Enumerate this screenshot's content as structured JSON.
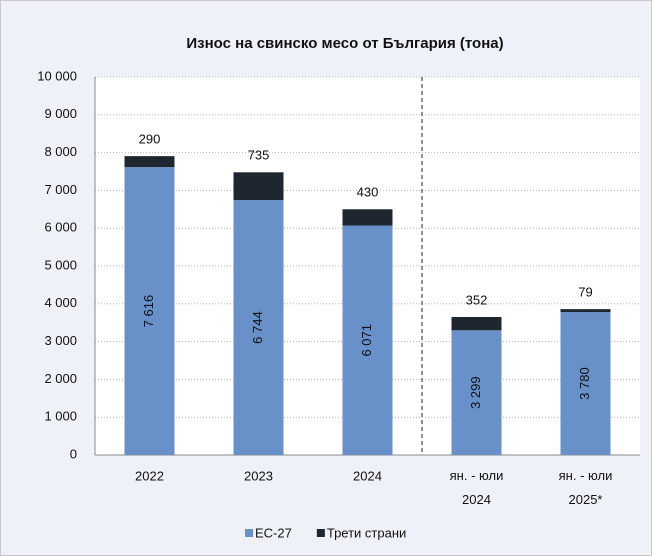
{
  "chart_data": {
    "type": "bar",
    "stacked": true,
    "title": "Износ на свинско месо от България (тона)",
    "categories": [
      "2022",
      "2023",
      "2024",
      "ян. - юли 2024",
      "ян. - юли 2025*"
    ],
    "series": [
      {
        "name": "ЕС-27",
        "color": "#6891c9",
        "values": [
          7616,
          6744,
          6071,
          3299,
          3780
        ],
        "value_labels": [
          "7 616",
          "6 744",
          "6 071",
          "3 299",
          "3 780"
        ]
      },
      {
        "name": "Трети страни",
        "color": "#1f2630",
        "values": [
          290,
          735,
          430,
          352,
          79
        ]
      }
    ],
    "ylim": [
      0,
      10000
    ],
    "yticks": [
      0,
      {
        "value": 1000,
        "label": "1 000"
      },
      {
        "value": 2000,
        "label": "2 000"
      },
      {
        "value": 3000,
        "label": "3 000"
      },
      {
        "value": 4000,
        "label": "4 000"
      },
      {
        "value": 5000,
        "label": "5 000"
      },
      {
        "value": 6000,
        "label": "6 000"
      },
      {
        "value": 7000,
        "label": "7 000"
      },
      {
        "value": 8000,
        "label": "8 000"
      },
      {
        "value": 9000,
        "label": "9 000"
      },
      {
        "value": 10000,
        "label": "10 000"
      }
    ],
    "grid": true,
    "legend": "bottom"
  }
}
